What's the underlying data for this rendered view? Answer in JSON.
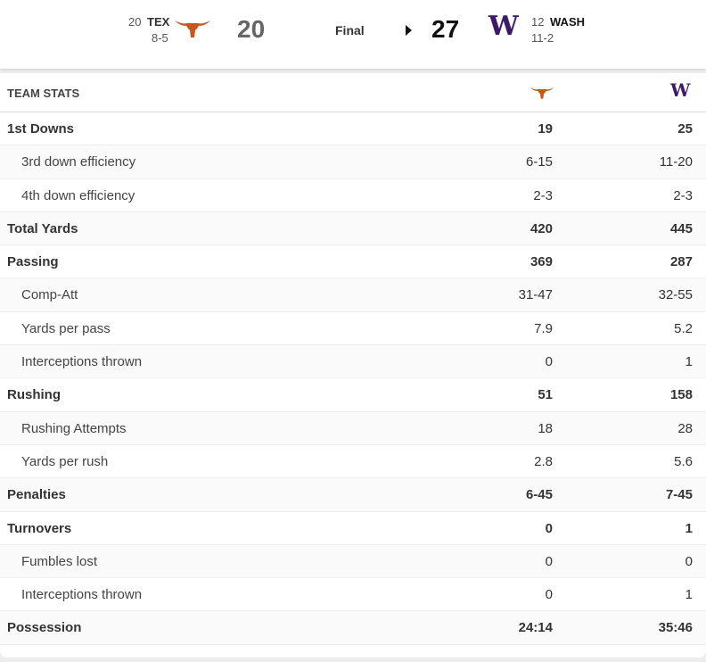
{
  "game": {
    "status": "Final",
    "away": {
      "rank": "20",
      "abbr": "TEX",
      "record": "8-5",
      "score": "20",
      "color": "#c8571b",
      "logo": "longhorn-logo"
    },
    "home": {
      "rank": "12",
      "abbr": "WASH",
      "record": "11-2",
      "score": "27",
      "color": "#3b1a6b",
      "logo": "w-logo",
      "logo_text": "W"
    }
  },
  "table": {
    "title": "TEAM STATS",
    "rows": [
      {
        "label": "1st Downs",
        "tex": "19",
        "wash": "25",
        "type": "main"
      },
      {
        "label": "3rd down efficiency",
        "tex": "6-15",
        "wash": "11-20",
        "type": "sub"
      },
      {
        "label": "4th down efficiency",
        "tex": "2-3",
        "wash": "2-3",
        "type": "sub"
      },
      {
        "label": "Total Yards",
        "tex": "420",
        "wash": "445",
        "type": "main"
      },
      {
        "label": "Passing",
        "tex": "369",
        "wash": "287",
        "type": "main"
      },
      {
        "label": "Comp-Att",
        "tex": "31-47",
        "wash": "32-55",
        "type": "sub"
      },
      {
        "label": "Yards per pass",
        "tex": "7.9",
        "wash": "5.2",
        "type": "sub"
      },
      {
        "label": "Interceptions thrown",
        "tex": "0",
        "wash": "1",
        "type": "sub"
      },
      {
        "label": "Rushing",
        "tex": "51",
        "wash": "158",
        "type": "main"
      },
      {
        "label": "Rushing Attempts",
        "tex": "18",
        "wash": "28",
        "type": "sub"
      },
      {
        "label": "Yards per rush",
        "tex": "2.8",
        "wash": "5.6",
        "type": "sub"
      },
      {
        "label": "Penalties",
        "tex": "6-45",
        "wash": "7-45",
        "type": "main"
      },
      {
        "label": "Turnovers",
        "tex": "0",
        "wash": "1",
        "type": "main"
      },
      {
        "label": "Fumbles lost",
        "tex": "0",
        "wash": "0",
        "type": "sub"
      },
      {
        "label": "Interceptions thrown",
        "tex": "0",
        "wash": "1",
        "type": "sub"
      },
      {
        "label": "Possession",
        "tex": "24:14",
        "wash": "35:46",
        "type": "main"
      }
    ]
  }
}
